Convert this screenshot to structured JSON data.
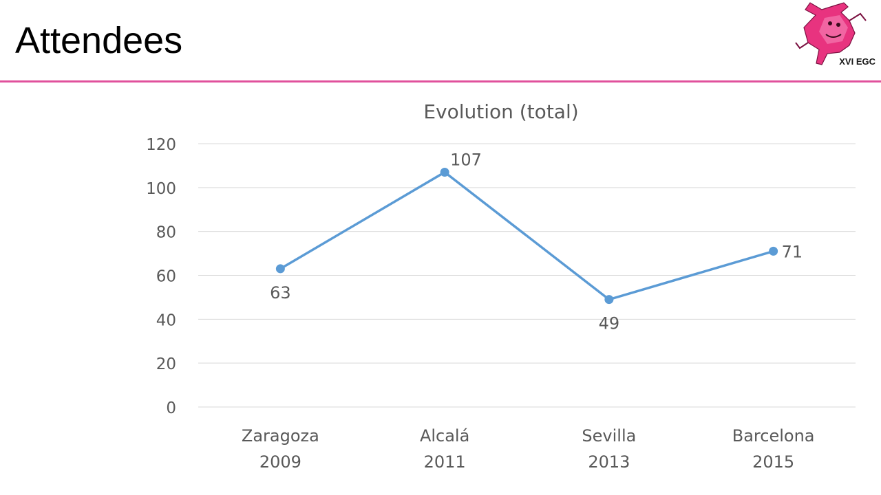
{
  "slide": {
    "title": "Attendees",
    "accent_color": "#e0519c"
  },
  "logo": {
    "text": "XVI EGC",
    "color": "#e8337f"
  },
  "chart_data": {
    "type": "line",
    "title": "Evolution (total)",
    "categories": [
      [
        "Zaragoza",
        "2009"
      ],
      [
        "Alcalá",
        "2011"
      ],
      [
        "Sevilla",
        "2013"
      ],
      [
        "Barcelona",
        "2015"
      ]
    ],
    "series": [
      {
        "values": [
          63,
          107,
          49,
          71
        ]
      }
    ],
    "data_labels": [
      "63",
      "107",
      "49",
      "71"
    ],
    "data_label_positions": [
      "below",
      "above-right",
      "below",
      "right"
    ],
    "y_ticks": [
      "0",
      "20",
      "40",
      "60",
      "80",
      "100",
      "120"
    ],
    "ylim": [
      0,
      120
    ],
    "y_step": 20,
    "grid": true,
    "legend": "none",
    "line_color": "#5b9bd5",
    "grid_color": "#d9d9d9",
    "text_color": "#595959"
  }
}
